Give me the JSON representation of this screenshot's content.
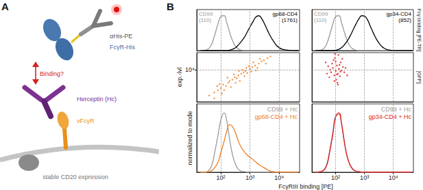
{
  "panel_labels": [
    "A",
    "B"
  ],
  "diagram": {
    "antibody_label": "αHis-PE",
    "receptor_label": "FcγR-His",
    "drug_label": "Herceptin (Hc)",
    "viral_receptor_label": "vFcγR",
    "question": "Binding?",
    "cell_label": "stable CD20 expression"
  },
  "side_labels": {
    "top_row": "Fcγ binding [PE-TR]",
    "middle_row": "[GFP]"
  },
  "shared_xlabel": "FcγRIII binding [PE]",
  "chart_data": [
    {
      "type": "line",
      "log": "x",
      "grid": true,
      "tick_labels": false,
      "xlim": [
        15,
        50000
      ],
      "ylim": [
        0,
        100
      ],
      "xticks": [
        100,
        1000,
        10000
      ],
      "yticks": [],
      "x": [
        20,
        30,
        40,
        50,
        60,
        80,
        100,
        130,
        160,
        200,
        250,
        320,
        400,
        500,
        650,
        800,
        1000,
        1300,
        1600,
        2000,
        2500,
        3200,
        4000,
        5000,
        6500,
        8000,
        10000,
        13000,
        16000,
        20000,
        30000,
        45000
      ],
      "series": [
        {
          "name": "CD99",
          "annotation": "(110)",
          "color": "#9a9a9a",
          "values": [
            0,
            1,
            6,
            18,
            35,
            65,
            83,
            85,
            68,
            45,
            25,
            10,
            4,
            1,
            0,
            0,
            0,
            0,
            0,
            0,
            0,
            0,
            0,
            0,
            0,
            0,
            0,
            0,
            0,
            0,
            0,
            0
          ]
        },
        {
          "name": "gp68-CD4",
          "annotation": "(1761)",
          "color": "#000000",
          "values": [
            0,
            0,
            0,
            0,
            0,
            0,
            0,
            0,
            0,
            1,
            3,
            7,
            14,
            22,
            33,
            45,
            58,
            72,
            82,
            85,
            78,
            64,
            49,
            35,
            22,
            13,
            7,
            3,
            2,
            1,
            0,
            0
          ]
        }
      ]
    },
    {
      "type": "line",
      "log": "x",
      "grid": true,
      "tick_labels": false,
      "xlim": [
        15,
        50000
      ],
      "ylim": [
        0,
        100
      ],
      "xticks": [
        100,
        1000,
        10000
      ],
      "yticks": [],
      "x": [
        20,
        30,
        40,
        50,
        60,
        80,
        100,
        130,
        160,
        200,
        250,
        320,
        400,
        500,
        650,
        800,
        1000,
        1300,
        1600,
        2000,
        2500,
        3200,
        4000,
        5000,
        6500,
        8000,
        10000,
        13000,
        16000,
        20000,
        30000,
        45000
      ],
      "series": [
        {
          "name": "CD99",
          "annotation": "(110)",
          "color": "#9a9a9a",
          "values": [
            0,
            1,
            6,
            18,
            35,
            65,
            83,
            85,
            68,
            45,
            25,
            10,
            4,
            1,
            0,
            0,
            0,
            0,
            0,
            0,
            0,
            0,
            0,
            0,
            0,
            0,
            0,
            0,
            0,
            0,
            0,
            0
          ]
        },
        {
          "name": "gp34-CD4",
          "annotation": "(852)",
          "color": "#000000",
          "values": [
            0,
            0,
            0,
            0,
            0,
            0,
            1,
            3,
            7,
            14,
            23,
            36,
            50,
            64,
            78,
            85,
            84,
            74,
            59,
            44,
            30,
            18,
            10,
            5,
            2,
            1,
            0,
            0,
            0,
            0,
            0,
            0
          ]
        }
      ]
    },
    {
      "type": "scatter",
      "log": true,
      "grid": true,
      "tick_labels": "y",
      "ylabel": "exp.-lvl",
      "xlim": [
        15,
        50000
      ],
      "ylim": [
        500,
        50000
      ],
      "xticks": [
        100,
        1000,
        10000
      ],
      "yticks": [
        {
          "value": 10000,
          "label": "10⁴"
        }
      ],
      "color": "#ee7d1f",
      "x": [
        40,
        60,
        80,
        100,
        120,
        150,
        180,
        200,
        250,
        300,
        350,
        400,
        500,
        600,
        700,
        800,
        1000,
        1200,
        1500,
        2000,
        2500,
        3000,
        4000,
        5000,
        90,
        130,
        220,
        280,
        450,
        550,
        900,
        1100,
        1800,
        2200,
        60,
        110,
        170,
        650,
        1300,
        3500,
        75,
        320,
        420,
        750,
        1600
      ],
      "values": [
        900,
        1200,
        1500,
        1800,
        2500,
        2200,
        3000,
        3500,
        4000,
        5000,
        4500,
        6000,
        7000,
        8000,
        9000,
        7500,
        11000,
        13000,
        15000,
        18000,
        22000,
        25000,
        30000,
        35000,
        2600,
        1500,
        2000,
        6500,
        3500,
        10000,
        14000,
        8500,
        12000,
        28000,
        700,
        1100,
        4800,
        5500,
        20000,
        18000,
        2200,
        3000,
        9000,
        12000,
        9500
      ]
    },
    {
      "type": "scatter",
      "log": true,
      "grid": true,
      "tick_labels": false,
      "xlim": [
        15,
        50000
      ],
      "ylim": [
        500,
        50000
      ],
      "xticks": [
        100,
        1000,
        10000
      ],
      "yticks": [
        {
          "value": 10000,
          "label": "10⁴"
        }
      ],
      "color": "#e31a1c",
      "x": [
        60,
        70,
        80,
        90,
        100,
        110,
        120,
        130,
        150,
        85,
        95,
        105,
        115,
        140,
        160,
        180,
        200,
        75,
        65,
        55,
        125,
        100,
        90,
        110,
        135,
        145,
        170,
        220,
        250,
        50,
        45,
        120,
        95
      ],
      "values": [
        5000,
        8000,
        12000,
        6000,
        9000,
        15000,
        7000,
        11000,
        20000,
        25000,
        30000,
        4000,
        3000,
        5500,
        9500,
        13000,
        8000,
        18000,
        10000,
        14000,
        40000,
        22000,
        3500,
        6500,
        16000,
        8500,
        28000,
        12000,
        6000,
        7000,
        20000,
        2500,
        45000
      ]
    },
    {
      "type": "line",
      "log": "x",
      "grid": true,
      "tick_labels": "x",
      "ylabel": "normalized to mode",
      "xlim": [
        15,
        50000
      ],
      "ylim": [
        0,
        115
      ],
      "xticks": [
        {
          "value": 100,
          "label": "10²"
        },
        {
          "value": 1000,
          "label": "10³"
        },
        {
          "value": 10000,
          "label": "10⁴"
        }
      ],
      "yticks": [],
      "x": [
        20,
        30,
        40,
        50,
        60,
        80,
        100,
        130,
        160,
        200,
        250,
        320,
        400,
        500,
        650,
        800,
        1000,
        1300,
        1600,
        2000,
        2500,
        3200,
        4000,
        5000,
        6500,
        8000,
        10000,
        13000,
        16000,
        20000,
        30000,
        45000
      ],
      "series": [
        {
          "name": "CD99 + Hc",
          "color": "#9a9a9a",
          "values": [
            0,
            0,
            4,
            13,
            30,
            62,
            88,
            100,
            86,
            56,
            30,
            13,
            5,
            2,
            1,
            0,
            0,
            0,
            0,
            0,
            0,
            0,
            0,
            0,
            0,
            0,
            0,
            0,
            0,
            0,
            0,
            0
          ]
        },
        {
          "name": "gp68-CD4 + Hc",
          "color": "#ee7d1f",
          "values": [
            0,
            0,
            1,
            3,
            7,
            17,
            33,
            52,
            69,
            80,
            77,
            66,
            52,
            42,
            34,
            29,
            25,
            21,
            17,
            13,
            10,
            7,
            4,
            2,
            1,
            0,
            0,
            0,
            0,
            0,
            0,
            0
          ]
        }
      ]
    },
    {
      "type": "line",
      "log": "x",
      "grid": true,
      "tick_labels": "x",
      "xlim": [
        15,
        50000
      ],
      "ylim": [
        0,
        115
      ],
      "xticks": [
        {
          "value": 100,
          "label": "10²"
        },
        {
          "value": 1000,
          "label": "10³"
        },
        {
          "value": 10000,
          "label": "10⁴"
        }
      ],
      "yticks": [],
      "x": [
        20,
        30,
        40,
        50,
        60,
        80,
        100,
        130,
        160,
        200,
        250,
        320,
        400,
        500,
        650,
        800,
        1000,
        1300,
        1600,
        2000,
        2500,
        3200,
        4000,
        5000,
        6500,
        8000,
        10000,
        13000,
        16000,
        20000,
        30000,
        45000
      ],
      "series": [
        {
          "name": "CD99 + Hc",
          "color": "#9a9a9a",
          "values": [
            0,
            1,
            5,
            15,
            33,
            68,
            95,
            97,
            80,
            50,
            26,
            11,
            4,
            2,
            1,
            0,
            0,
            0,
            0,
            0,
            0,
            0,
            0,
            0,
            0,
            0,
            0,
            0,
            0,
            0,
            0,
            0
          ]
        },
        {
          "name": "gp34-CD4 + Hc",
          "color": "#e31a1c",
          "values": [
            0,
            1,
            4,
            13,
            30,
            64,
            93,
            100,
            82,
            52,
            27,
            12,
            5,
            2,
            1,
            0,
            0,
            0,
            0,
            0,
            0,
            0,
            0,
            0,
            0,
            0,
            0,
            0,
            0,
            0,
            0,
            0
          ]
        }
      ]
    }
  ]
}
